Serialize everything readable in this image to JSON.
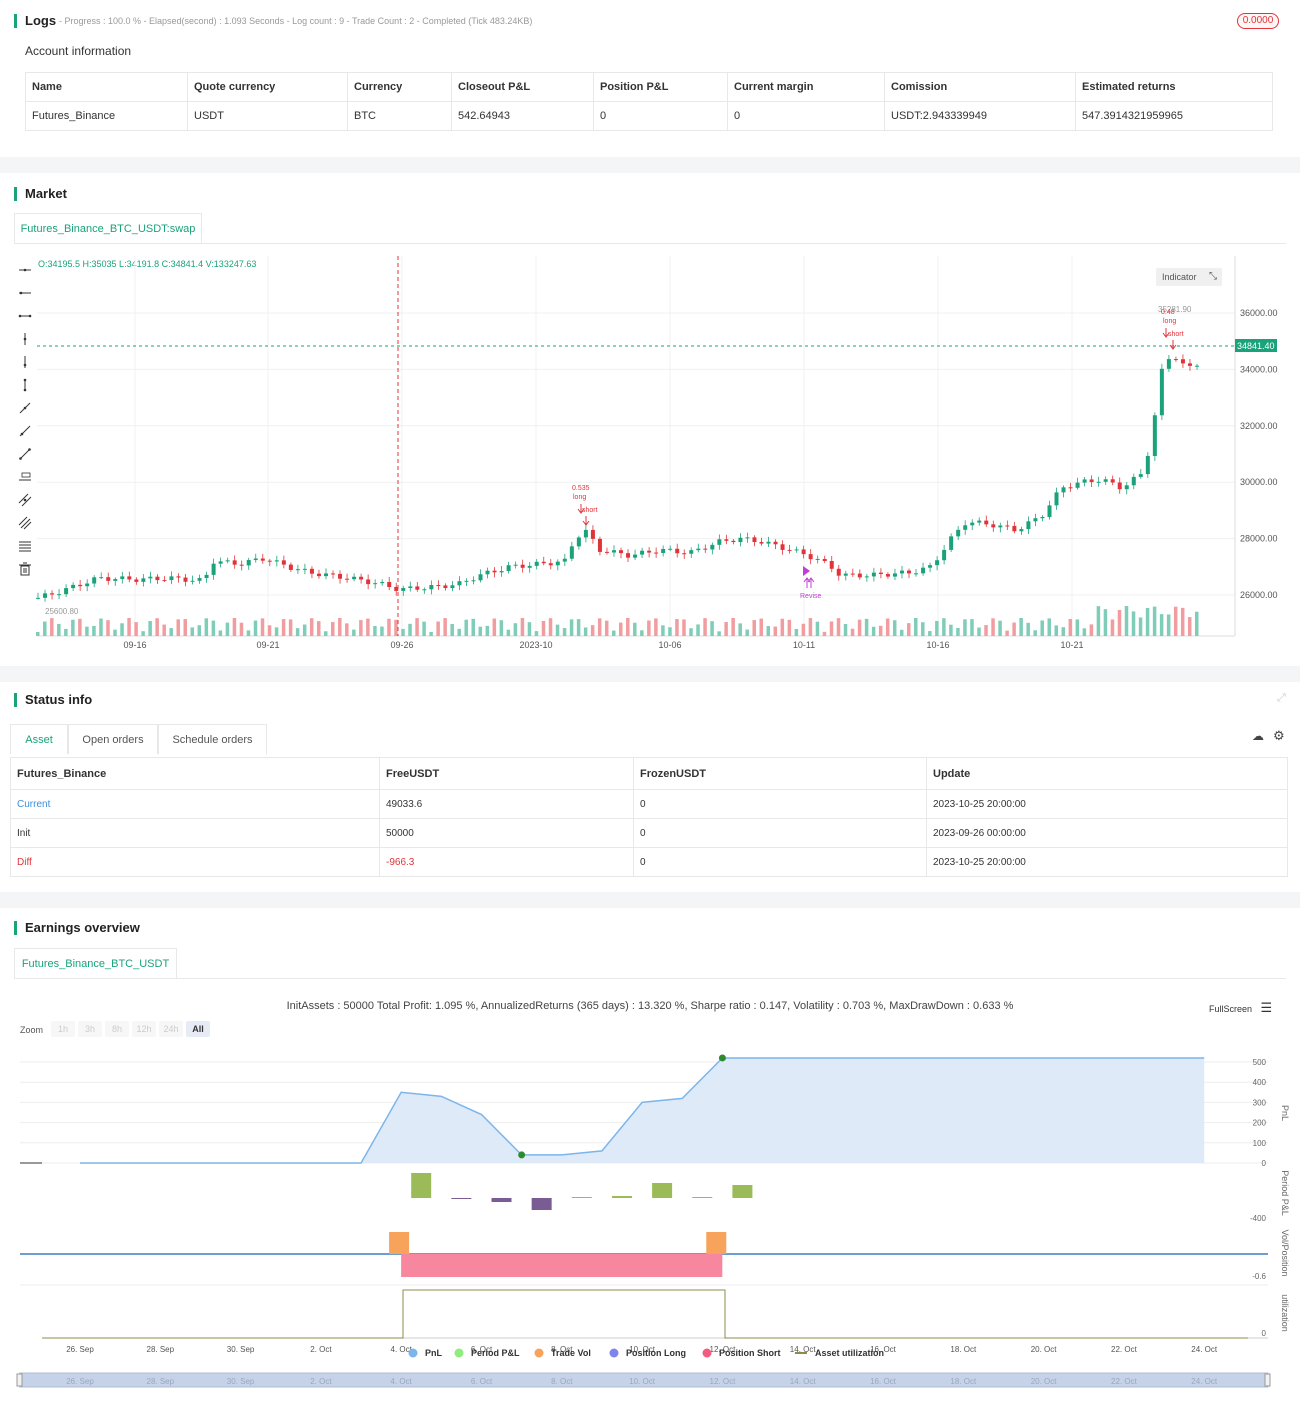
{
  "logs": {
    "title": "Logs",
    "summary": "- Progress : 100.0 % - Elapsed(second) : 1.093  Seconds - Log count : 9 - Trade Count : 2 - Completed (Tick 483.24KB)",
    "badge": "0.0000",
    "account_title": "Account information",
    "columns": [
      "Name",
      "Quote currency",
      "Currency",
      "Closeout P&L",
      "Position P&L",
      "Current margin",
      "Comission",
      "Estimated returns"
    ],
    "row": [
      "Futures_Binance",
      "USDT",
      "BTC",
      "542.64943",
      "0",
      "0",
      "USDT:2.943339949",
      "547.3914321959965"
    ]
  },
  "market": {
    "title": "Market",
    "tab": "Futures_Binance_BTC_USDT:swap",
    "ohlc": "O:34195.5 H:35035 L:34191.8 C:34841.4 V:133247.63",
    "indicator_label": "Indicator",
    "price_tag": "34841.40",
    "high_label": "35281.90",
    "low_label": "25600.80",
    "y_ticks": [
      "36000.00",
      "34000.00",
      "32000.00",
      "30000.00",
      "28000.00",
      "26000.00"
    ],
    "x_ticks": [
      "09-16",
      "09-21",
      "09-26",
      "2023-10",
      "10-06",
      "10-11",
      "10-16",
      "10-21"
    ],
    "annotations": [
      {
        "text": "0.535"
      },
      {
        "text": "long"
      },
      {
        "text": "short"
      },
      {
        "text": "0.48"
      },
      {
        "text": "long"
      },
      {
        "text": "short"
      },
      {
        "text": "Revise"
      }
    ],
    "tool_icons": [
      "horizontal-line-icon",
      "horizontal-ray-icon",
      "horizontal-segment-icon",
      "vertical-line-icon",
      "vertical-ray-icon",
      "vertical-segment-icon",
      "trend-line-icon",
      "ray-line-icon",
      "segment-line-icon",
      "price-label-icon",
      "parallel-channel-icon",
      "parallel-lines-icon",
      "fib-levels-icon",
      "trash-icon"
    ]
  },
  "status": {
    "title": "Status info",
    "tabs": [
      "Asset",
      "Open orders",
      "Schedule orders"
    ],
    "columns": [
      "Futures_Binance",
      "FreeUSDT",
      "FrozenUSDT",
      "Update"
    ],
    "rows": [
      [
        "Current",
        "49033.6",
        "0",
        "2023-10-25 20:00:00"
      ],
      [
        "Init",
        "50000",
        "0",
        "2023-09-26 00:00:00"
      ],
      [
        "Diff",
        "-966.3",
        "0",
        "2023-10-25 20:00:00"
      ]
    ],
    "colors": {
      "current": "#3b8fd6",
      "diff": "#e0343a"
    }
  },
  "earnings": {
    "title": "Earnings overview",
    "tab": "Futures_Binance_BTC_USDT",
    "summary": "InitAssets : 50000 Total Profit: 1.095 %, AnnualizedReturns (365 days) : 13.320 %, Sharpe ratio : 0.147, Volatility : 0.703 %, MaxDrawDown : 0.633 %",
    "fullscreen": "FullScreen",
    "zoom_label": "Zoom",
    "zoom_buttons": [
      "1h",
      "3h",
      "8h",
      "12h",
      "24h",
      "All"
    ],
    "pnl_ticks": [
      "500",
      "400",
      "300",
      "200",
      "100",
      "0"
    ],
    "axis_titles": [
      "PnL",
      "Period P&L",
      "Vol/Position",
      "utilization"
    ],
    "period_tick": "-400",
    "vol_tick": "-0.6",
    "util_tick": "0",
    "x_ticks": [
      "26. Sep",
      "28. Sep",
      "30. Sep",
      "2. Oct",
      "4. Oct",
      "6. Oct",
      "8. Oct",
      "10. Oct",
      "12. Oct",
      "14. Oct",
      "16. Oct",
      "18. Oct",
      "20. Oct",
      "22. Oct",
      "24. Oct"
    ],
    "legend": [
      {
        "label": "PnL",
        "color": "#7cb5ec"
      },
      {
        "label": "Period P&L",
        "color": "#90ed7d"
      },
      {
        "label": "Trade Vol",
        "color": "#f7a35c"
      },
      {
        "label": "Position Long",
        "color": "#8085e9"
      },
      {
        "label": "Position Short",
        "color": "#f15c80"
      },
      {
        "label": "Asset utilization",
        "color": "#8d8b4a"
      }
    ]
  },
  "chart_data": {
    "type": "area",
    "series": [
      {
        "name": "PnL",
        "x": [
          "26. Sep",
          "3. Oct",
          "4. Oct",
          "5. Oct",
          "6. Oct",
          "7. Oct",
          "8. Oct",
          "9. Oct",
          "10. Oct",
          "11. Oct",
          "12. Oct",
          "24. Oct"
        ],
        "values": [
          0,
          0,
          350,
          330,
          240,
          40,
          40,
          60,
          300,
          320,
          520,
          520
        ]
      }
    ],
    "ylim": [
      0,
      550
    ]
  }
}
